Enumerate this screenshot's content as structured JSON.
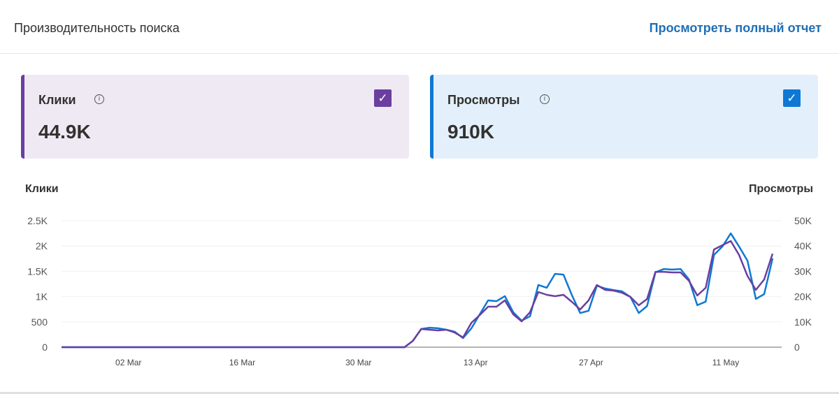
{
  "header": {
    "title": "Производительность поиска",
    "link": "Просмотреть полный отчет"
  },
  "cards": [
    {
      "label": "Клики",
      "value": "44.9K",
      "info_icon": "info-icon",
      "checked": true,
      "color": "#6b3fa0"
    },
    {
      "label": "Просмотры",
      "value": "910K",
      "info_icon": "info-icon",
      "checked": true,
      "color": "#0f78d4"
    }
  ],
  "chart_data": {
    "type": "line",
    "left_axis_label": "Клики",
    "right_axis_label": "Просмотры",
    "left_ticks": [
      "0",
      "500",
      "1K",
      "1.5K",
      "2K",
      "2.5K"
    ],
    "right_ticks": [
      "0",
      "10K",
      "20K",
      "30K",
      "40K",
      "50K"
    ],
    "left_ylim": [
      0,
      2500
    ],
    "right_ylim": [
      0,
      50000
    ],
    "x_range": [
      0,
      85
    ],
    "x_ticks": [
      {
        "label": "02 Mar",
        "pos": 8
      },
      {
        "label": "16 Mar",
        "pos": 21.6
      },
      {
        "label": "30 Mar",
        "pos": 35.5
      },
      {
        "label": "13 Apr",
        "pos": 49.5
      },
      {
        "label": "27 Apr",
        "pos": 63.3
      },
      {
        "label": "11 May",
        "pos": 79.4
      }
    ],
    "leading_zero_days": 42,
    "series": [
      {
        "name": "Клики",
        "axis": "left",
        "color": "#6b3fa0",
        "values": [
          124,
          359,
          345,
          331,
          345,
          290,
          193,
          483,
          635,
          801,
          801,
          925,
          649,
          511,
          690,
          1091,
          1036,
          1008,
          1036,
          898,
          746,
          925,
          1229,
          1132,
          1119,
          1077,
          994,
          829,
          953,
          1491,
          1491,
          1478,
          1478,
          1312,
          1022,
          1174,
          1933,
          2016,
          2099,
          1823,
          1409,
          1132,
          1340,
          1850
        ]
      },
      {
        "name": "Просмотры",
        "axis": "right",
        "color": "#0f78d4",
        "values": [
          2500,
          7200,
          7700,
          7500,
          6900,
          6100,
          3600,
          7500,
          13000,
          18500,
          18200,
          20200,
          13800,
          10500,
          12200,
          24600,
          23500,
          29000,
          28700,
          20700,
          13500,
          14400,
          24300,
          23200,
          22600,
          22100,
          19900,
          13500,
          16300,
          29600,
          30900,
          30700,
          30900,
          26800,
          16600,
          18000,
          36500,
          39800,
          45000,
          39800,
          34200,
          19100,
          21000,
          35100
        ]
      }
    ]
  }
}
